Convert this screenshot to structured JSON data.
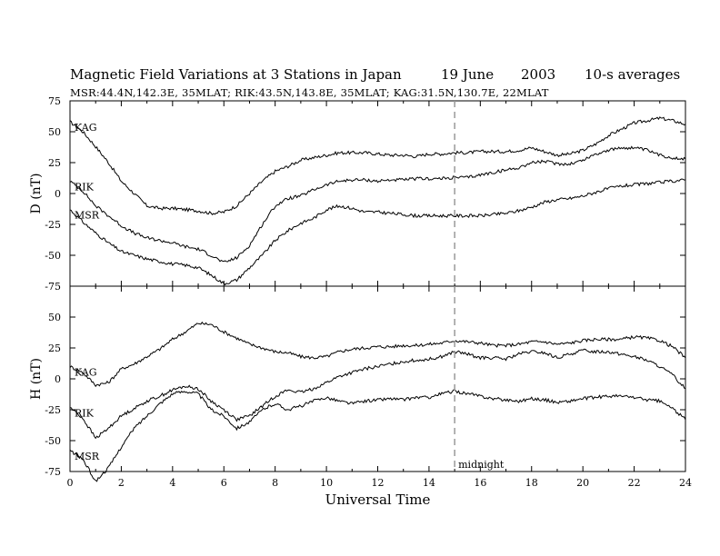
{
  "header": {
    "title": "Magnetic Field Variations at 3 Stations in Japan",
    "date": "19 June",
    "year": "2003",
    "averaging": "10-s averages",
    "stations": "MSR:44.4N,142.3E, 35MLAT;  RIK:43.5N,143.8E, 35MLAT;  KAG:31.5N,130.7E, 22MLAT"
  },
  "chart_data": [
    {
      "type": "line",
      "panel": "D",
      "ylabel": "D (nT)",
      "ylim": [
        -75,
        75
      ],
      "yticks": [
        -75,
        -50,
        -25,
        0,
        25,
        50,
        75
      ],
      "xlim": [
        0,
        24
      ],
      "x": [
        0,
        0.5,
        1,
        1.5,
        2,
        2.5,
        3,
        3.5,
        4,
        4.5,
        5,
        5.5,
        6,
        6.5,
        7,
        7.5,
        8,
        8.5,
        9,
        9.5,
        10,
        10.5,
        11,
        11.5,
        12,
        12.5,
        13,
        13.5,
        14,
        14.5,
        15,
        15.5,
        16,
        16.5,
        17,
        17.5,
        18,
        18.5,
        19,
        19.5,
        20,
        20.5,
        21,
        21.5,
        22,
        22.5,
        23,
        23.5,
        24
      ],
      "series": [
        {
          "name": "KAG",
          "values": [
            58,
            50,
            38,
            25,
            10,
            0,
            -10,
            -12,
            -12,
            -13,
            -14,
            -16,
            -15,
            -10,
            0,
            10,
            18,
            22,
            27,
            29,
            31,
            33,
            33,
            33,
            32,
            31,
            31,
            30,
            32,
            32,
            33,
            33,
            34,
            34,
            34,
            35,
            37,
            34,
            31,
            32,
            35,
            40,
            47,
            52,
            57,
            59,
            61,
            59,
            56
          ]
        },
        {
          "name": "RIK",
          "values": [
            10,
            2,
            -10,
            -18,
            -26,
            -32,
            -36,
            -38,
            -40,
            -43,
            -45,
            -50,
            -56,
            -52,
            -42,
            -25,
            -10,
            -4,
            -2,
            3,
            7,
            10,
            11,
            11,
            10,
            11,
            11,
            12,
            12,
            12,
            13,
            13,
            15,
            17,
            19,
            21,
            25,
            26,
            24,
            24,
            27,
            32,
            35,
            37,
            37,
            35,
            31,
            29,
            28
          ]
        },
        {
          "name": "MSR",
          "values": [
            -13,
            -23,
            -32,
            -40,
            -47,
            -50,
            -53,
            -55,
            -57,
            -58,
            -60,
            -66,
            -73,
            -70,
            -60,
            -50,
            -38,
            -30,
            -24,
            -20,
            -13,
            -10,
            -12,
            -15,
            -15,
            -16,
            -17,
            -18,
            -18,
            -18,
            -18,
            -18,
            -18,
            -17,
            -16,
            -14,
            -11,
            -7,
            -5,
            -4,
            -2,
            1,
            4,
            6,
            7,
            8,
            9,
            10,
            11
          ]
        }
      ]
    },
    {
      "type": "line",
      "panel": "H",
      "ylabel": "H (nT)",
      "ylim": [
        -75,
        75
      ],
      "yticks": [
        -75,
        -50,
        -25,
        0,
        25,
        50
      ],
      "xlim": [
        0,
        24
      ],
      "xlabel": "Universal Time",
      "xticks": [
        0,
        2,
        4,
        6,
        8,
        10,
        12,
        14,
        16,
        18,
        20,
        22,
        24
      ],
      "x": [
        0,
        0.5,
        1,
        1.5,
        2,
        2.5,
        3,
        3.5,
        4,
        4.5,
        5,
        5.5,
        6,
        6.5,
        7,
        7.5,
        8,
        8.5,
        9,
        9.5,
        10,
        10.5,
        11,
        11.5,
        12,
        12.5,
        13,
        13.5,
        14,
        14.5,
        15,
        15.5,
        16,
        16.5,
        17,
        17.5,
        18,
        18.5,
        19,
        19.5,
        20,
        20.5,
        21,
        21.5,
        22,
        22.5,
        23,
        23.5,
        24
      ],
      "series": [
        {
          "name": "KAG",
          "values": [
            10,
            5,
            -5,
            -3,
            8,
            12,
            18,
            24,
            32,
            38,
            45,
            44,
            38,
            33,
            28,
            25,
            22,
            21,
            18,
            17,
            18,
            22,
            24,
            25,
            26,
            26,
            27,
            27,
            28,
            29,
            31,
            30,
            29,
            27,
            27,
            28,
            30,
            30,
            28,
            29,
            31,
            32,
            32,
            32,
            34,
            33,
            31,
            26,
            17
          ]
        },
        {
          "name": "RIK",
          "values": [
            -23,
            -32,
            -48,
            -40,
            -30,
            -24,
            -18,
            -14,
            -9,
            -6,
            -8,
            -18,
            -25,
            -33,
            -30,
            -22,
            -14,
            -9,
            -11,
            -8,
            -3,
            2,
            5,
            8,
            10,
            12,
            14,
            15,
            16,
            18,
            22,
            20,
            17,
            17,
            16,
            20,
            22,
            21,
            17,
            20,
            23,
            22,
            22,
            20,
            18,
            15,
            10,
            3,
            -8
          ]
        },
        {
          "name": "MSR",
          "values": [
            -58,
            -65,
            -83,
            -72,
            -55,
            -40,
            -30,
            -20,
            -12,
            -10,
            -12,
            -25,
            -30,
            -40,
            -35,
            -25,
            -20,
            -25,
            -22,
            -18,
            -15,
            -18,
            -20,
            -18,
            -17,
            -16,
            -17,
            -15,
            -15,
            -12,
            -10,
            -12,
            -14,
            -16,
            -17,
            -18,
            -16,
            -17,
            -19,
            -18,
            -16,
            -15,
            -14,
            -14,
            -15,
            -17,
            -18,
            -24,
            -33
          ]
        }
      ],
      "annotations": [
        {
          "x": 15,
          "text": "midnight",
          "style": "dashed vertical line"
        }
      ]
    }
  ]
}
